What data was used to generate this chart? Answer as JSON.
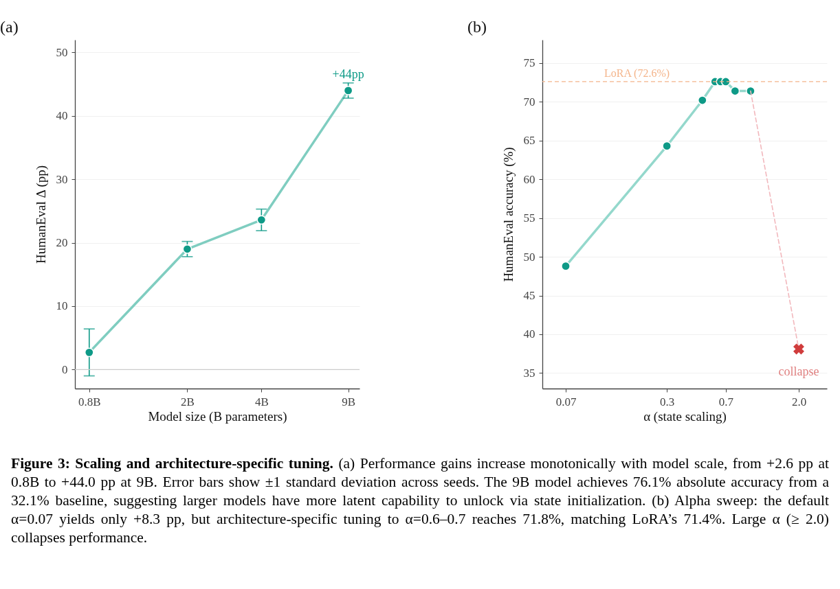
{
  "chart_data": [
    {
      "type": "line",
      "title": "(a)",
      "xlabel": "Model size (B parameters)",
      "ylabel": "HumanEval Δ (pp)",
      "log": "x",
      "grid": "y",
      "xlim": [
        0.7,
        10
      ],
      "xticks": [
        {
          "value": 0.8,
          "label": "0.8B"
        },
        {
          "value": 2,
          "label": "2B"
        },
        {
          "value": 4,
          "label": "4B"
        },
        {
          "value": 9,
          "label": "9B"
        }
      ],
      "ylim": [
        -3,
        52
      ],
      "yticks": [
        0,
        10,
        20,
        30,
        40,
        50
      ],
      "x": [
        0.8,
        2,
        4,
        9
      ],
      "series": [
        {
          "color": "#7fcdc0",
          "marker": "none",
          "values": [
            2.7,
            19.0,
            23.6,
            44.0
          ]
        },
        {
          "type": "scatter",
          "color": "#0e9a87",
          "marker": "circle",
          "values": [
            2.7,
            19.0,
            23.6,
            44.0
          ],
          "errors": [
            3.7,
            1.2,
            1.7,
            1.2
          ]
        }
      ],
      "ref_lines": [
        {
          "axis": "y",
          "value": 0,
          "color": "#cccccc",
          "line_style": "solid"
        }
      ],
      "annotations": [
        {
          "text": "+44pp",
          "x": 9,
          "y": 44.0
        },
        "Figure 3: Scaling and architecture-specific tuning. (a) Performance gains increase monotonically with model scale, from +2.6 pp at 0.8B to +44.0 pp at 9B. Error bars show ±1 standard deviation across seeds. The 9B model achieves 76.1% absolute accuracy from a 32.1% baseline, suggesting larger models have more latent capability to unlock via state initialization. (b) Alpha sweep: the default α=0.07 yields only +8.3 pp, but architecture-specific tuning to α=0.6–0.7 reaches 71.8%, matching LoRA’s 71.4%. Large α (≥ 2.0) collapses performance."
      ]
    },
    {
      "type": "line",
      "title": "(b)",
      "xlabel": "α (state scaling)",
      "ylabel": "HumanEval accuracy (%)",
      "log": "x",
      "grid": "y",
      "xlim": [
        0.05,
        3
      ],
      "xticks": [
        0.07,
        0.3,
        0.7,
        {
          "value": 2,
          "label": "2.0"
        }
      ],
      "ylim": [
        33,
        78
      ],
      "yticks": [
        35,
        40,
        45,
        50,
        55,
        60,
        65,
        70,
        75
      ],
      "series": [
        {
          "color": "#94d8cc",
          "marker": "none",
          "x": [
            0.07,
            0.3,
            0.5,
            0.6,
            0.65,
            0.7,
            0.8,
            1.0
          ],
          "values": [
            48.8,
            64.3,
            70.2,
            72.6,
            72.6,
            72.6,
            71.4,
            71.4
          ]
        },
        {
          "type": "scatter",
          "color": "#0e9a87",
          "marker": "circle",
          "x": [
            0.07,
            0.3,
            0.5,
            0.6,
            0.65,
            0.7,
            0.8,
            1.0
          ],
          "values": [
            48.8,
            64.3,
            70.2,
            72.6,
            72.6,
            72.6,
            71.4,
            71.4
          ]
        },
        {
          "color": "#f2b8bd",
          "marker": "none",
          "line_style": "dashed",
          "x": [
            1.0,
            2.0
          ],
          "values": [
            71.4,
            38.1
          ]
        },
        {
          "type": "scatter",
          "color": "#d03c3c",
          "marker": "cross",
          "x": [
            2.0
          ],
          "values": [
            38.1
          ]
        }
      ],
      "ref_lines": [
        {
          "axis": "y",
          "value": 72.6,
          "label": "LoRA (72.6%)",
          "color": "#f4b48a",
          "line_style": "dashed"
        }
      ],
      "annotations": [
        {
          "text": "collapse",
          "x": 2.0,
          "y": 38.1
        }
      ]
    }
  ]
}
